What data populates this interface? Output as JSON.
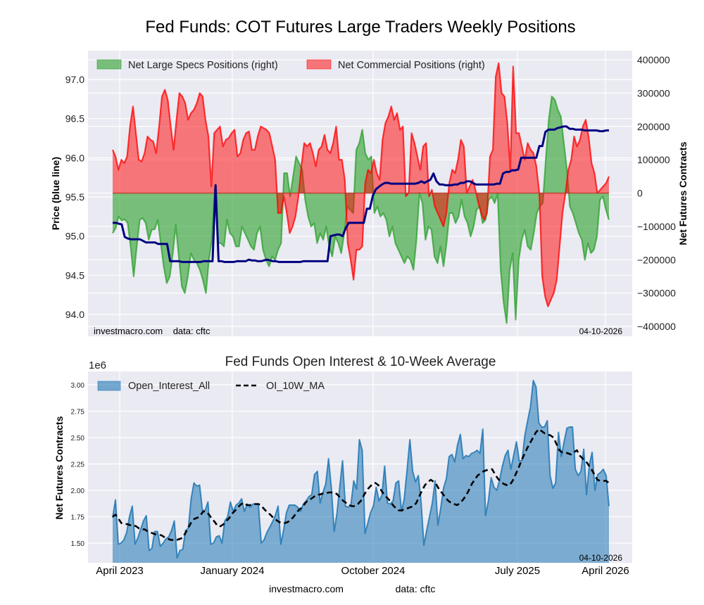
{
  "figure": {
    "title": "Fed Funds: COT Futures Large Traders Weekly Positions",
    "footer_site": "investmacro.com",
    "footer_data": "data: cftc"
  },
  "chart_data": [
    {
      "type": "area",
      "title": "",
      "ylabel_left": "Price (blue line)",
      "ylabel_right": "Net Futures Contracts",
      "ylim_left": [
        93.8,
        97.3
      ],
      "ylim_right": [
        -400000,
        400000
      ],
      "yticks_left": [
        "94.0",
        "94.5",
        "95.0",
        "95.5",
        "96.0",
        "96.5",
        "97.0"
      ],
      "yticks_right": [
        "−400000",
        "−300000",
        "−200000",
        "−100000",
        "0",
        "100000",
        "200000",
        "300000",
        "400000"
      ],
      "grid": true,
      "legend_position": "top-left",
      "annotation_left": "investmacro.com    data: cftc",
      "annotation_right": "04-10-2026",
      "x_range": [
        "2023-03-28",
        "2026-04-07"
      ],
      "series": [
        {
          "name": "Net Large Specs Positions (right)",
          "color": "#2ca02c",
          "values": [
            -120000,
            -105000,
            -70000,
            -82000,
            -78000,
            -90000,
            -160000,
            -250000,
            -160000,
            -80000,
            -75000,
            -90000,
            -140000,
            -110000,
            -108000,
            -80000,
            -150000,
            -220000,
            -270000,
            -250000,
            -180000,
            -95000,
            -190000,
            -280000,
            -300000,
            -250000,
            -180000,
            -200000,
            -210000,
            -230000,
            -260000,
            -300000,
            -200000,
            -140000,
            20000,
            -150000,
            -150000,
            -160000,
            -80000,
            -120000,
            -130000,
            -160000,
            -160000,
            -100000,
            -120000,
            -140000,
            -160000,
            -170000,
            -120000,
            -100000,
            -170000,
            -200000,
            -220000,
            -190000,
            -200000,
            -170000,
            -150000,
            60000,
            60000,
            -10000,
            50000,
            110000,
            90000,
            70000,
            -20000,
            -70000,
            -100000,
            -90000,
            -150000,
            -120000,
            -140000,
            -100000,
            -160000,
            -190000,
            -130000,
            -150000,
            -180000,
            -120000,
            -40000,
            -50000,
            -60000,
            130000,
            150000,
            190000,
            120000,
            100000,
            110000,
            -60000,
            -40000,
            -70000,
            -60000,
            -80000,
            -130000,
            -100000,
            -150000,
            -170000,
            -190000,
            -210000,
            -190000,
            -200000,
            -230000,
            -140000,
            0,
            -30000,
            -140000,
            -100000,
            -110000,
            -190000,
            -210000,
            -160000,
            -220000,
            -150000,
            -60000,
            -60000,
            -90000,
            -70000,
            -20000,
            -70000,
            -90000,
            -130000,
            -100000,
            -50000,
            -40000,
            -90000,
            -80000,
            -20000,
            -10000,
            -30000,
            0,
            -230000,
            -330000,
            -390000,
            -230000,
            -180000,
            -380000,
            -200000,
            -140000,
            -110000,
            -160000,
            -170000,
            -120000,
            -60000,
            -40000,
            -30000,
            100000,
            220000,
            290000,
            280000,
            250000,
            230000,
            150000,
            70000,
            -40000,
            -60000,
            -90000,
            -120000,
            -140000,
            -200000,
            -150000,
            -180000,
            -170000,
            -130000,
            -20000,
            -10000,
            -50000,
            -80000
          ],
          "note": "values in contracts, weekly, left-to-right"
        },
        {
          "name": "Net Commercial Positions (right)",
          "color": "#ff0000",
          "values": [
            130000,
            110000,
            70000,
            100000,
            90000,
            110000,
            200000,
            260000,
            180000,
            100000,
            95000,
            120000,
            170000,
            160000,
            155000,
            120000,
            200000,
            290000,
            310000,
            280000,
            200000,
            130000,
            220000,
            300000,
            290000,
            270000,
            220000,
            240000,
            250000,
            270000,
            300000,
            290000,
            220000,
            170000,
            20000,
            180000,
            190000,
            200000,
            140000,
            160000,
            165000,
            180000,
            190000,
            110000,
            120000,
            160000,
            180000,
            185000,
            130000,
            130000,
            170000,
            200000,
            195000,
            190000,
            180000,
            140000,
            100000,
            -60000,
            -60000,
            -10000,
            -60000,
            -120000,
            -100000,
            -70000,
            -10000,
            80000,
            150000,
            140000,
            150000,
            120000,
            80000,
            130000,
            140000,
            175000,
            130000,
            120000,
            150000,
            200000,
            100000,
            100000,
            40000,
            -150000,
            -200000,
            -260000,
            -170000,
            -170000,
            -160000,
            30000,
            70000,
            60000,
            100000,
            60000,
            40000,
            160000,
            210000,
            230000,
            260000,
            220000,
            240000,
            190000,
            200000,
            -10000,
            0,
            180000,
            150000,
            110000,
            70000,
            140000,
            150000,
            -10000,
            10000,
            -40000,
            -60000,
            -80000,
            -100000,
            -60000,
            30000,
            70000,
            60000,
            100000,
            160000,
            140000,
            0,
            20000,
            40000,
            10000,
            -30000,
            -60000,
            -80000,
            -60000,
            110000,
            130000,
            350000,
            390000,
            300000,
            290000,
            210000,
            70000,
            380000,
            180000,
            180000,
            140000,
            100000,
            150000,
            130000,
            120000,
            80000,
            0,
            -250000,
            -310000,
            -340000,
            -320000,
            -300000,
            -260000,
            -160000,
            -60000,
            0,
            70000,
            100000,
            170000,
            140000,
            160000,
            200000,
            220000,
            170000,
            90000,
            60000,
            0,
            10000,
            20000,
            30000,
            50000
          ],
          "note": "values in contracts, weekly, left-to-right"
        },
        {
          "name": "Price (blue line)",
          "color": "#000080",
          "axis": "left",
          "values": [
            95.17,
            95.17,
            95.16,
            95.15,
            94.99,
            94.97,
            94.96,
            94.96,
            94.96,
            94.96,
            94.94,
            94.92,
            94.92,
            94.92,
            94.92,
            94.9,
            94.9,
            94.9,
            94.9,
            94.68,
            94.68,
            94.68,
            94.68,
            94.67,
            94.67,
            94.67,
            94.67,
            94.67,
            94.67,
            94.67,
            94.68,
            94.68,
            94.68,
            94.68,
            95.65,
            94.68,
            94.68,
            94.67,
            94.67,
            94.67,
            94.67,
            94.68,
            94.68,
            94.68,
            94.68,
            94.7,
            94.69,
            94.69,
            94.68,
            94.68,
            94.69,
            94.7,
            94.69,
            94.68,
            94.68,
            94.67,
            94.67,
            94.67,
            94.67,
            94.67,
            94.67,
            94.67,
            94.67,
            94.68,
            94.68,
            94.68,
            94.68,
            94.68,
            94.68,
            94.68,
            94.68,
            94.68,
            95.0,
            95.01,
            95.02,
            95.02,
            95.0,
            95.1,
            95.17,
            95.17,
            95.17,
            95.17,
            95.17,
            95.17,
            95.35,
            95.35,
            95.52,
            95.6,
            95.63,
            95.66,
            95.68,
            95.68,
            95.67,
            95.67,
            95.67,
            95.67,
            95.67,
            95.67,
            95.67,
            95.67,
            95.67,
            95.68,
            95.7,
            95.68,
            95.7,
            95.72,
            95.8,
            95.7,
            95.66,
            95.66,
            95.65,
            95.65,
            95.65,
            95.66,
            95.66,
            95.68,
            95.68,
            95.7,
            95.7,
            95.68,
            95.66,
            95.66,
            95.66,
            95.66,
            95.66,
            95.66,
            95.66,
            95.67,
            95.67,
            95.8,
            95.82,
            95.82,
            95.84,
            95.84,
            95.85,
            96.0,
            96.0,
            96.0,
            96.0,
            96.0,
            96.0,
            96.15,
            96.15,
            96.33,
            96.36,
            96.36,
            96.36,
            96.38,
            96.39,
            96.4,
            96.4,
            96.37,
            96.37,
            96.36,
            96.36,
            96.36,
            96.35,
            96.35,
            96.35,
            96.35,
            96.35,
            96.34,
            96.34,
            96.35,
            96.35
          ],
          "note": "price units, weekly, left-to-right"
        }
      ]
    },
    {
      "type": "area",
      "title": "Fed Funds Open Interest & 10-Week Average",
      "ylabel": "Net Futures Contracts",
      "yscale_label": "1e6",
      "ylim": [
        1.33,
        3.1
      ],
      "yticks": [
        "1.50",
        "1.75",
        "2.00",
        "2.25",
        "2.50",
        "2.75",
        "3.00"
      ],
      "xticks": [
        "April 2023",
        "January 2024",
        "October 2024",
        "July 2025",
        "April 2026"
      ],
      "grid": true,
      "legend_position": "top-left",
      "annotation_right": "04-10-2026",
      "series": [
        {
          "name": "Open_Interest_All",
          "color": "#1f77b4",
          "values": [
            1.74,
            1.91,
            1.49,
            1.5,
            1.53,
            1.6,
            1.75,
            1.85,
            1.49,
            1.55,
            1.63,
            1.71,
            1.76,
            1.43,
            1.45,
            1.61,
            1.61,
            1.47,
            1.5,
            1.54,
            1.56,
            1.62,
            1.71,
            1.36,
            1.43,
            1.44,
            1.62,
            1.64,
            1.92,
            2.07,
            2.04,
            2.05,
            1.81,
            1.81,
            1.89,
            1.49,
            1.5,
            1.56,
            1.57,
            1.5,
            1.71,
            1.75,
            1.89,
            1.8,
            1.86,
            1.88,
            1.92,
            1.8,
            1.87,
            1.84,
            1.87,
            1.87,
            1.86,
            1.5,
            1.53,
            1.6,
            1.65,
            1.7,
            1.76,
            1.85,
            1.49,
            1.63,
            1.79,
            1.86,
            1.86,
            1.86,
            1.84,
            1.8,
            1.87,
            1.9,
            1.94,
            1.96,
            2.15,
            2.18,
            1.88,
            1.98,
            2.06,
            2.3,
            2.02,
            1.61,
            1.78,
            2.03,
            2.28,
            1.85,
            1.84,
            1.87,
            2.09,
            2.01,
            2.48,
            2.38,
            1.59,
            1.69,
            1.79,
            1.85,
            2.03,
            1.9,
            1.95,
            2.23,
            1.88,
            1.87,
            1.9,
            2.07,
            2.09,
            1.8,
            1.92,
            2.19,
            2.48,
            2.18,
            2.08,
            2.14,
            1.89,
            1.48,
            1.62,
            1.75,
            1.88,
            2.09,
            1.67,
            1.83,
            2.02,
            2.11,
            2.32,
            2.34,
            2.27,
            2.43,
            2.53,
            2.3,
            2.33,
            2.32,
            2.35,
            2.36,
            2.38,
            2.35,
            2.58,
            1.76,
            1.9,
            2.12,
            2.03,
            2.0,
            2.1,
            2.23,
            2.33,
            2.38,
            2.2,
            2.33,
            2.46,
            2.28,
            2.28,
            2.52,
            2.66,
            2.79,
            3.04,
            2.98,
            2.64,
            2.6,
            2.6,
            2.66,
            2.14,
            2.02,
            2.07,
            2.55,
            2.32,
            2.46,
            2.59,
            2.6,
            2.6,
            2.2,
            2.14,
            2.18,
            2.39,
            1.96,
            2.24,
            2.36,
            2.0,
            2.15,
            2.17,
            2.2,
            2.14,
            1.85
          ],
          "note": "millions of contracts, weekly"
        },
        {
          "name": "OI_10W_MA",
          "color": "#000000",
          "style": "dashed",
          "values": [
            1.75,
            1.77,
            1.73,
            1.69,
            1.68,
            1.68,
            1.67,
            1.67,
            1.66,
            1.64,
            1.63,
            1.63,
            1.61,
            1.6,
            1.59,
            1.58,
            1.58,
            1.57,
            1.55,
            1.54,
            1.53,
            1.53,
            1.53,
            1.54,
            1.55,
            1.6,
            1.65,
            1.7,
            1.73,
            1.74,
            1.76,
            1.8,
            1.8,
            1.77,
            1.73,
            1.7,
            1.66,
            1.66,
            1.68,
            1.71,
            1.74,
            1.78,
            1.81,
            1.84,
            1.87,
            1.88,
            1.86,
            1.86,
            1.87,
            1.87,
            1.87,
            1.85,
            1.82,
            1.79,
            1.77,
            1.74,
            1.72,
            1.7,
            1.69,
            1.69,
            1.7,
            1.72,
            1.75,
            1.79,
            1.82,
            1.84,
            1.88,
            1.91,
            1.92,
            1.94,
            1.96,
            1.96,
            1.97,
            1.97,
            1.98,
            1.98,
            1.98,
            1.96,
            1.93,
            1.9,
            1.88,
            1.86,
            1.85,
            1.85,
            1.87,
            1.9,
            1.95,
            2.0,
            2.03,
            2.06,
            2.07,
            2.05,
            2.0,
            1.96,
            1.93,
            1.9,
            1.86,
            1.83,
            1.81,
            1.81,
            1.82,
            1.83,
            1.84,
            1.85,
            1.88,
            1.94,
            2.0,
            2.05,
            2.08,
            2.1,
            2.08,
            2.05,
            2.0,
            1.97,
            1.93,
            1.9,
            1.88,
            1.87,
            1.86,
            1.88,
            1.91,
            1.95,
            2.0,
            2.06,
            2.1,
            2.14,
            2.16,
            2.18,
            2.19,
            2.2,
            2.2,
            2.15,
            2.11,
            2.08,
            2.06,
            2.05,
            2.05,
            2.09,
            2.15,
            2.21,
            2.28,
            2.34,
            2.4,
            2.45,
            2.5,
            2.55,
            2.58,
            2.56,
            2.54,
            2.53,
            2.52,
            2.5,
            2.44,
            2.38,
            2.36,
            2.36,
            2.35,
            2.34,
            2.36,
            2.38,
            2.33,
            2.3,
            2.28,
            2.24,
            2.2,
            2.15,
            2.1,
            2.09,
            2.09,
            2.09,
            2.07
          ],
          "note": "millions of contracts, weekly"
        }
      ]
    }
  ]
}
